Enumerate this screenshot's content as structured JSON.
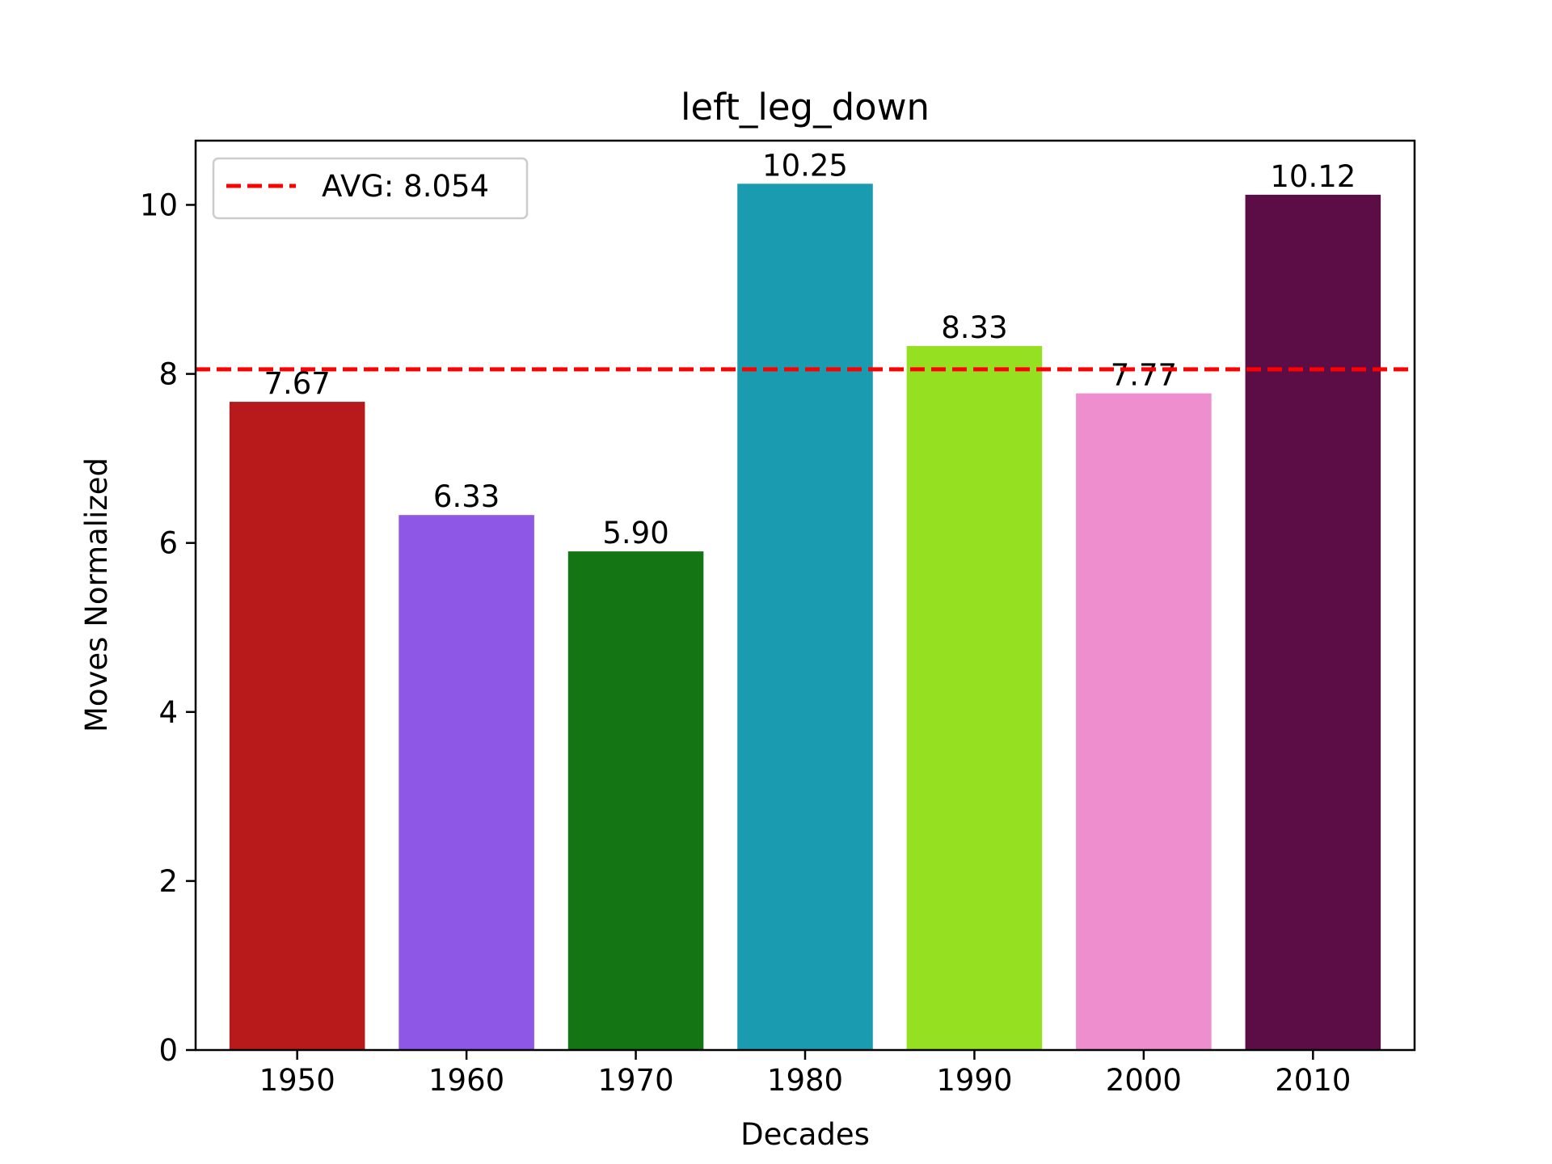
{
  "chart_data": {
    "type": "bar",
    "title": "left_leg_down",
    "xlabel": "Decades",
    "ylabel": "Moves Normalized",
    "categories": [
      "1950",
      "1960",
      "1970",
      "1980",
      "1990",
      "2000",
      "2010"
    ],
    "values": [
      7.67,
      6.33,
      5.9,
      10.25,
      8.33,
      7.77,
      10.12
    ],
    "data_labels": [
      "7.67",
      "6.33",
      "5.90",
      "10.25",
      "8.33",
      "7.77",
      "10.12"
    ],
    "colors": [
      "#b81a1c",
      "#8e57e6",
      "#137513",
      "#1b9bb0",
      "#94e021",
      "#ee8ece",
      "#5d0d45"
    ],
    "ylim": [
      0,
      10.76
    ],
    "yticks": [
      0,
      2,
      4,
      6,
      8,
      10
    ],
    "ytick_labels": [
      "0",
      "2",
      "4",
      "6",
      "8",
      "10"
    ],
    "average": {
      "value": 8.054,
      "label": "AVG: 8.054",
      "color": "#ff0000",
      "style": "dashed"
    },
    "legend": {
      "placement": "top-left",
      "entries": [
        "AVG: 8.054"
      ]
    },
    "grid": false
  }
}
